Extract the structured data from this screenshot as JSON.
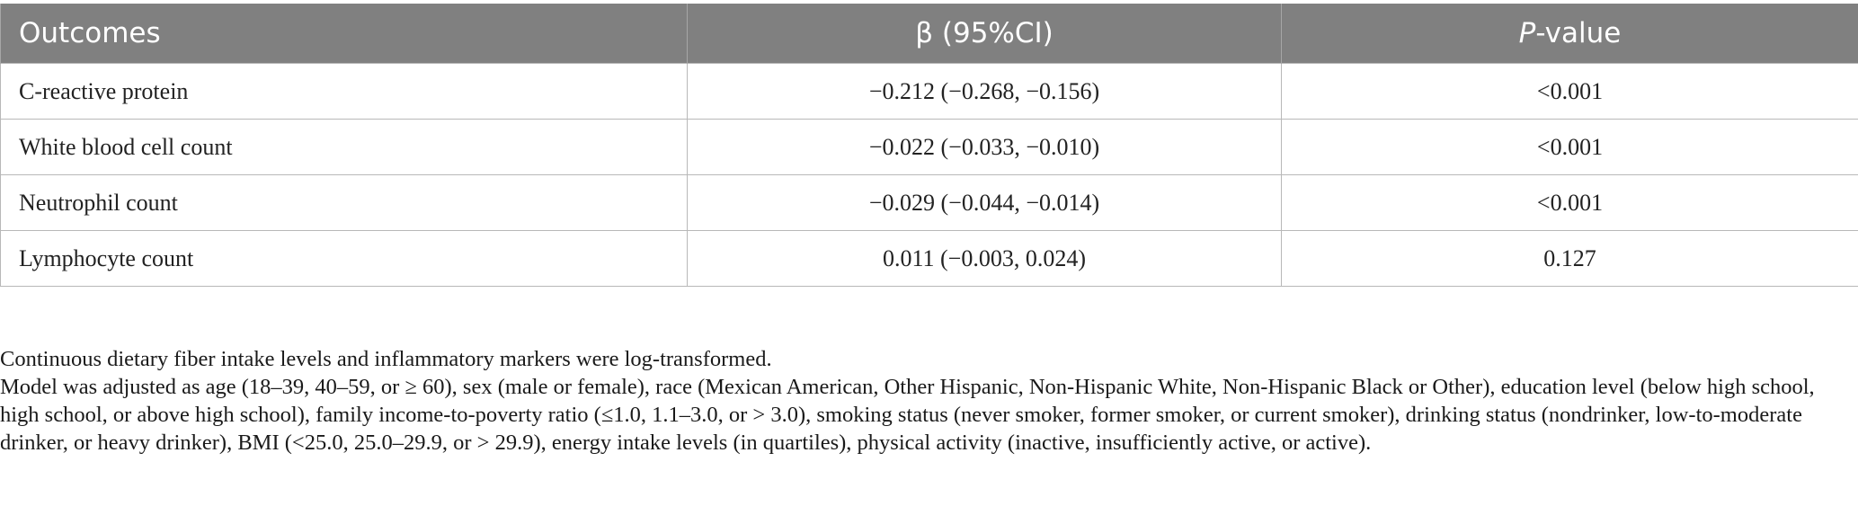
{
  "table": {
    "headers": [
      "Outcomes",
      "β (95%CI)",
      "-value"
    ],
    "header_italic_prefix": "P",
    "rows": [
      {
        "outcome": "C-reactive protein",
        "beta": "−0.212 (−0.268, −0.156)",
        "p": "<0.001"
      },
      {
        "outcome": "White blood cell count",
        "beta": "−0.022 (−0.033, −0.010)",
        "p": "<0.001"
      },
      {
        "outcome": "Neutrophil count",
        "beta": "−0.029 (−0.044, −0.014)",
        "p": "<0.001"
      },
      {
        "outcome": "Lymphocyte count",
        "beta": "0.011 (−0.003, 0.024)",
        "p": "0.127"
      }
    ]
  },
  "notes": {
    "line1": "Continuous dietary fiber intake levels and inflammatory markers were log-transformed.",
    "line2": "Model was adjusted as age (18–39, 40–59, or ≥ 60), sex (male or female), race (Mexican American, Other Hispanic, Non-Hispanic White, Non-Hispanic Black or Other), education level (below high school, high school, or above high school), family income-to-poverty ratio (≤1.0, 1.1–3.0, or > 3.0), smoking status (never smoker, former smoker, or current smoker), drinking status (nondrinker, low-to-moderate drinker, or heavy drinker), BMI (<25.0, 25.0–29.9, or > 29.9), energy intake levels (in quartiles), physical activity (inactive, insufficiently active, or active)."
  }
}
